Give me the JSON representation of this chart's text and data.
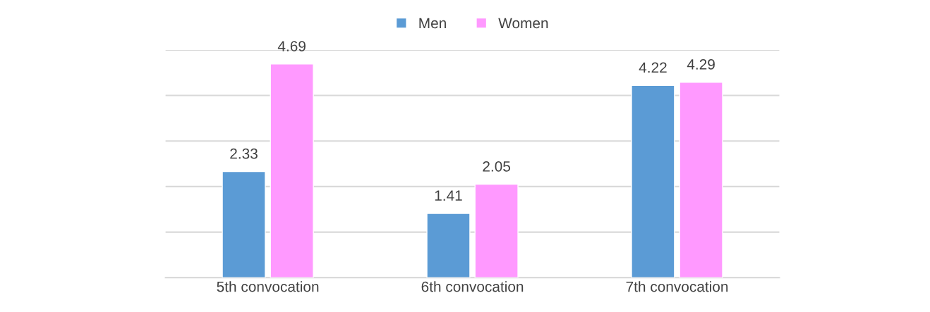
{
  "chart_data": {
    "type": "bar",
    "categories": [
      "5th convocation",
      "6th convocation",
      "7th convocation"
    ],
    "series": [
      {
        "name": "Men",
        "color": "#5b9bd5",
        "values": [
          2.33,
          1.41,
          4.22
        ]
      },
      {
        "name": "Women",
        "color": "#ff99ff",
        "values": [
          4.69,
          2.05,
          4.29
        ]
      }
    ],
    "ylim": [
      0,
      5
    ],
    "yticks": [
      {
        "value": 0,
        "label": null
      },
      {
        "value": 1,
        "label": null
      },
      {
        "value": 2,
        "label": null
      },
      {
        "value": 3,
        "label": null
      },
      {
        "value": 4,
        "label": null
      },
      {
        "value": 5,
        "label": null
      }
    ],
    "grid": "y",
    "legend": "top",
    "data_labels": true,
    "tick_labels": "x"
  }
}
